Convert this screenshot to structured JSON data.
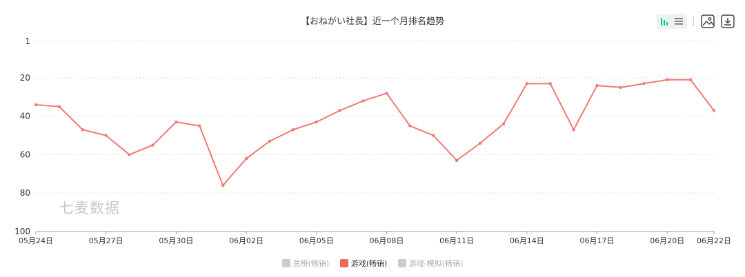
{
  "chart_data": {
    "type": "line",
    "title": "【おねがい社長】近一个月排名趋势",
    "watermark": "七麦数据",
    "y_axis": {
      "inverted": true,
      "range": [
        1,
        100
      ],
      "ticks": [
        "1",
        "20",
        "40",
        "60",
        "80",
        "100"
      ],
      "tick_values": [
        1,
        20,
        40,
        60,
        80,
        100
      ]
    },
    "x_tick_labels": [
      "05月24日",
      "05月27日",
      "05月30日",
      "06月02日",
      "06月05日",
      "06月08日",
      "06月11日",
      "06月14日",
      "06月17日",
      "06月20日",
      "06月22日"
    ],
    "x_tick_indices": [
      0,
      3,
      6,
      9,
      12,
      15,
      18,
      21,
      24,
      27,
      29
    ],
    "grid": true,
    "legend_position": "bottom",
    "legend": [
      {
        "label": "总榜(畅销)",
        "color": "#cccccc",
        "active": false
      },
      {
        "label": "游戏(畅销)",
        "color": "#f0675e",
        "active": true
      },
      {
        "label": "游戏-模拟(畅销)",
        "color": "#cccccc",
        "active": false
      }
    ],
    "series": [
      {
        "name": "游戏(畅销)",
        "color": "#f07a73",
        "dates": [
          "05月24日",
          "05月25日",
          "05月26日",
          "05月27日",
          "05月28日",
          "05月29日",
          "05月30日",
          "05月31日",
          "06月01日",
          "06月02日",
          "06月03日",
          "06月04日",
          "06月05日",
          "06月06日",
          "06月07日",
          "06月08日",
          "06月09日",
          "06月10日",
          "06月11日",
          "06月12日",
          "06月13日",
          "06月14日",
          "06月15日",
          "06月16日",
          "06月17日",
          "06月18日",
          "06月19日",
          "06月20日",
          "06月21日",
          "06月22日"
        ],
        "values": [
          34,
          35,
          47,
          50,
          60,
          55,
          43,
          45,
          76,
          62,
          53,
          47,
          43,
          37,
          32,
          28,
          45,
          50,
          63,
          54,
          44,
          23,
          23,
          47,
          24,
          25,
          23,
          21,
          21,
          37
        ]
      }
    ]
  },
  "toolbar": {
    "chart_type_icon": "bar-line-toggle-icon",
    "list_icon": "list-icon",
    "save_image_icon": "image-icon",
    "download_icon": "download-icon",
    "accent_color": "#1fbc8c"
  }
}
